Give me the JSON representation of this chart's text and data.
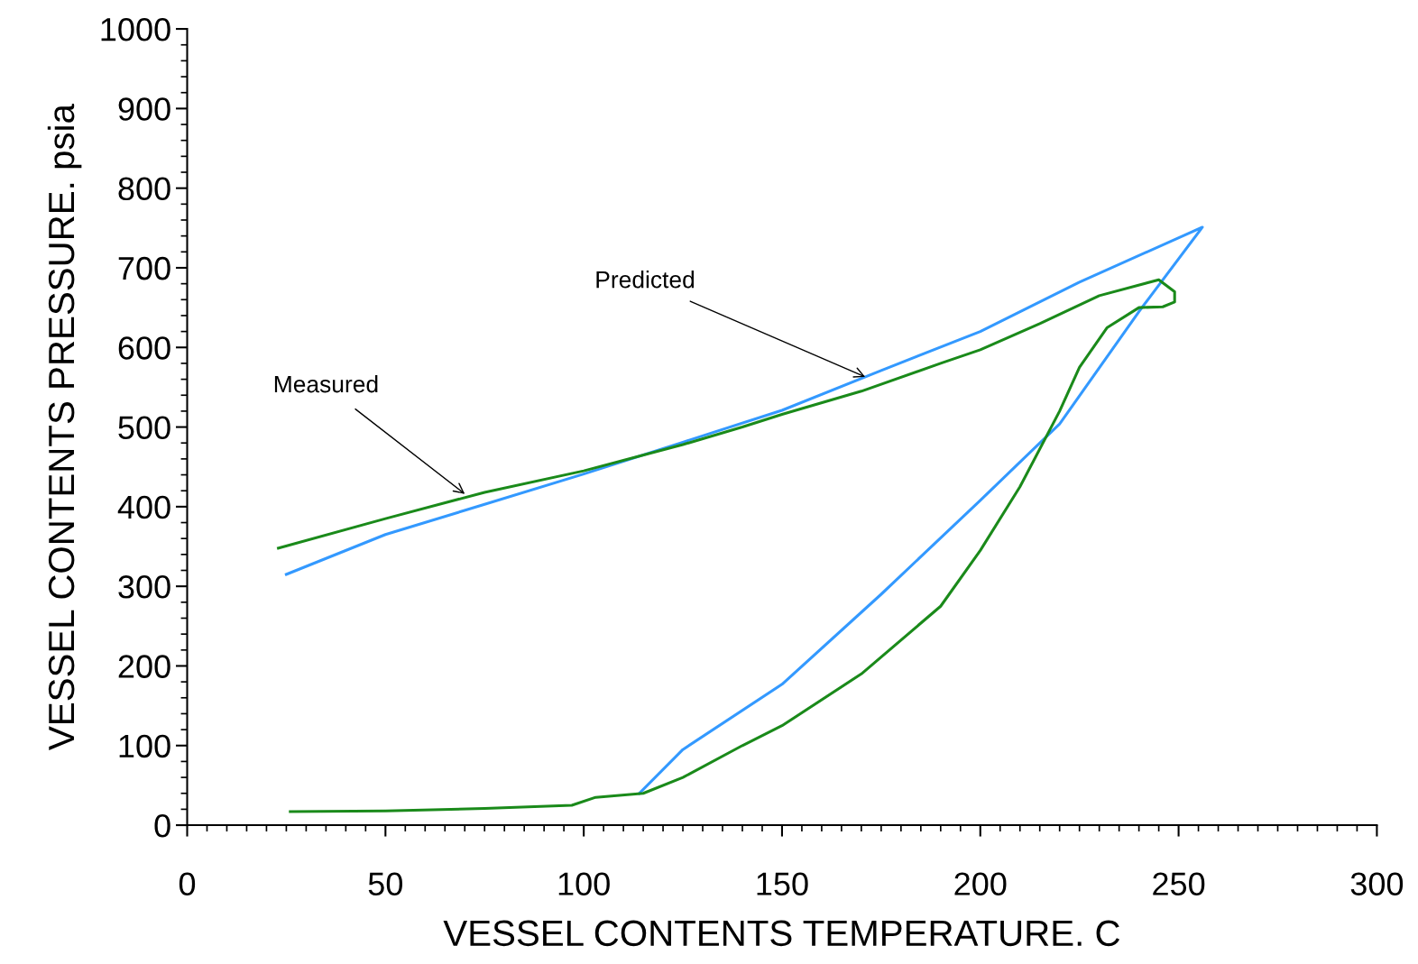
{
  "chart_data": {
    "type": "line",
    "xlabel": "VESSEL CONTENTS TEMPERATURE. C",
    "ylabel": "VESSEL CONTENTS PRESSURE. psia",
    "xlim": [
      0,
      300
    ],
    "ylim": [
      0,
      1000
    ],
    "xticks": [
      0,
      {
        "value": 5,
        "label": null
      },
      {
        "value": 10,
        "label": null
      },
      {
        "value": 15,
        "label": null
      },
      {
        "value": 20,
        "label": null
      },
      {
        "value": 25,
        "label": null
      },
      {
        "value": 30,
        "label": null
      },
      {
        "value": 35,
        "label": null
      },
      {
        "value": 40,
        "label": null
      },
      {
        "value": 45,
        "label": null
      },
      50,
      {
        "value": 55,
        "label": null
      },
      {
        "value": 60,
        "label": null
      },
      {
        "value": 65,
        "label": null
      },
      {
        "value": 70,
        "label": null
      },
      {
        "value": 75,
        "label": null
      },
      {
        "value": 80,
        "label": null
      },
      {
        "value": 85,
        "label": null
      },
      {
        "value": 90,
        "label": null
      },
      {
        "value": 95,
        "label": null
      },
      100,
      {
        "value": 105,
        "label": null
      },
      {
        "value": 110,
        "label": null
      },
      {
        "value": 115,
        "label": null
      },
      {
        "value": 120,
        "label": null
      },
      {
        "value": 125,
        "label": null
      },
      {
        "value": 130,
        "label": null
      },
      {
        "value": 135,
        "label": null
      },
      {
        "value": 140,
        "label": null
      },
      {
        "value": 145,
        "label": null
      },
      150,
      {
        "value": 155,
        "label": null
      },
      {
        "value": 160,
        "label": null
      },
      {
        "value": 165,
        "label": null
      },
      {
        "value": 170,
        "label": null
      },
      {
        "value": 175,
        "label": null
      },
      {
        "value": 180,
        "label": null
      },
      {
        "value": 185,
        "label": null
      },
      {
        "value": 190,
        "label": null
      },
      {
        "value": 195,
        "label": null
      },
      200,
      {
        "value": 205,
        "label": null
      },
      {
        "value": 210,
        "label": null
      },
      {
        "value": 215,
        "label": null
      },
      {
        "value": 220,
        "label": null
      },
      {
        "value": 225,
        "label": null
      },
      {
        "value": 230,
        "label": null
      },
      {
        "value": 235,
        "label": null
      },
      {
        "value": 240,
        "label": null
      },
      {
        "value": 245,
        "label": null
      },
      250,
      {
        "value": 255,
        "label": null
      },
      {
        "value": 260,
        "label": null
      },
      {
        "value": 265,
        "label": null
      },
      {
        "value": 270,
        "label": null
      },
      {
        "value": 275,
        "label": null
      },
      {
        "value": 280,
        "label": null
      },
      {
        "value": 285,
        "label": null
      },
      {
        "value": 290,
        "label": null
      },
      {
        "value": 295,
        "label": null
      },
      300
    ],
    "yticks": [
      0,
      {
        "value": 20,
        "label": null
      },
      {
        "value": 40,
        "label": null
      },
      {
        "value": 60,
        "label": null
      },
      {
        "value": 80,
        "label": null
      },
      100,
      {
        "value": 120,
        "label": null
      },
      {
        "value": 140,
        "label": null
      },
      {
        "value": 160,
        "label": null
      },
      {
        "value": 180,
        "label": null
      },
      200,
      {
        "value": 220,
        "label": null
      },
      {
        "value": 240,
        "label": null
      },
      {
        "value": 260,
        "label": null
      },
      {
        "value": 280,
        "label": null
      },
      300,
      {
        "value": 320,
        "label": null
      },
      {
        "value": 340,
        "label": null
      },
      {
        "value": 360,
        "label": null
      },
      {
        "value": 380,
        "label": null
      },
      400,
      {
        "value": 420,
        "label": null
      },
      {
        "value": 440,
        "label": null
      },
      {
        "value": 460,
        "label": null
      },
      {
        "value": 480,
        "label": null
      },
      500,
      {
        "value": 520,
        "label": null
      },
      {
        "value": 540,
        "label": null
      },
      {
        "value": 560,
        "label": null
      },
      {
        "value": 580,
        "label": null
      },
      600,
      {
        "value": 620,
        "label": null
      },
      {
        "value": 640,
        "label": null
      },
      {
        "value": 660,
        "label": null
      },
      {
        "value": 680,
        "label": null
      },
      700,
      {
        "value": 720,
        "label": null
      },
      {
        "value": 740,
        "label": null
      },
      {
        "value": 760,
        "label": null
      },
      {
        "value": 780,
        "label": null
      },
      800,
      {
        "value": 820,
        "label": null
      },
      {
        "value": 840,
        "label": null
      },
      {
        "value": 860,
        "label": null
      },
      {
        "value": 880,
        "label": null
      },
      900,
      {
        "value": 920,
        "label": null
      },
      {
        "value": 940,
        "label": null
      },
      {
        "value": 960,
        "label": null
      },
      {
        "value": 980,
        "label": null
      },
      1000
    ],
    "grid": false,
    "legend": false,
    "line_style": "solid",
    "series": [
      {
        "color": "#3399ff",
        "x": [
          114,
          125,
          150,
          175,
          200,
          220,
          240,
          256,
          225,
          200,
          175,
          150,
          125,
          100,
          75,
          50,
          25
        ],
        "values": [
          40,
          95,
          177,
          290,
          408,
          504,
          645,
          751,
          682,
          620,
          571,
          521,
          481,
          441,
          403,
          365,
          315
        ]
      },
      {
        "color": "#1a8a1a",
        "x": [
          26,
          50,
          75,
          97,
          103,
          115,
          125,
          140,
          150,
          170,
          190,
          200,
          210,
          220,
          225,
          232,
          240,
          246,
          249,
          249,
          245,
          230,
          215,
          200,
          190,
          170,
          150,
          140,
          125,
          100,
          75,
          50,
          23
        ],
        "values": [
          17,
          18,
          21,
          25,
          35,
          40,
          60,
          100,
          125,
          190,
          275,
          345,
          425,
          520,
          575,
          625,
          650,
          651,
          657,
          670,
          685,
          665,
          630,
          597,
          580,
          545,
          516,
          500,
          478,
          445,
          418,
          385,
          348
        ]
      }
    ],
    "annotations": [
      {
        "text": "Predicted",
        "x": 171,
        "y": 563
      },
      {
        "text": "Measured",
        "x": 70,
        "y": 416
      }
    ]
  }
}
